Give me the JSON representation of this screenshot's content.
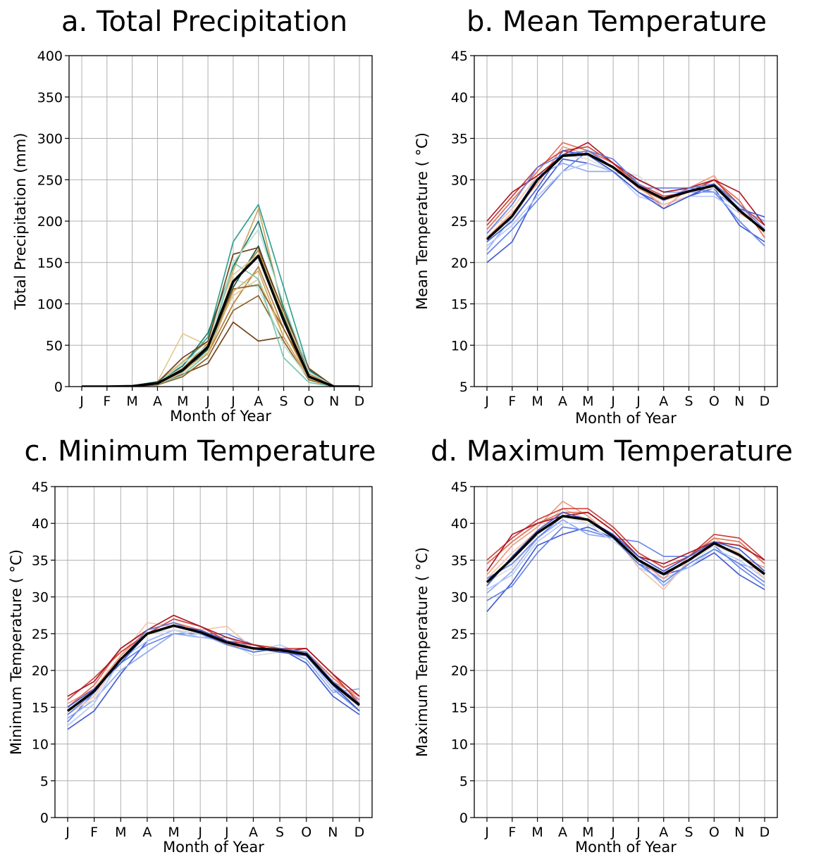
{
  "chart_data": [
    {
      "type": "line",
      "title": "a. Total Precipitation",
      "xlabel": "Month of Year",
      "ylabel": "Total Precipitation (mm)",
      "categories": [
        "J",
        "F",
        "M",
        "A",
        "M",
        "J",
        "J",
        "A",
        "S",
        "O",
        "N",
        "D"
      ],
      "ylim": [
        0,
        400
      ],
      "yticks": [
        0,
        50,
        100,
        150,
        200,
        250,
        300,
        350,
        400
      ],
      "grid": true,
      "palette": [
        "#6b3a10",
        "#8c5a1e",
        "#b07d35",
        "#cfa45c",
        "#e2c98f",
        "#b8e2d6",
        "#74c3ad",
        "#2a9d8a",
        "#137565",
        "#0a4f45"
      ],
      "mean_color": "#000000",
      "mean": [
        0,
        0,
        0.5,
        4,
        20,
        48,
        127,
        158,
        80,
        12,
        0,
        0
      ],
      "series": [
        {
          "values": [
            0,
            0,
            0,
            3,
            15,
            28,
            78,
            55,
            60,
            null,
            null,
            null
          ]
        },
        {
          "values": [
            0,
            0,
            0,
            2,
            12,
            35,
            92,
            110,
            55,
            8,
            0,
            0
          ]
        },
        {
          "values": [
            0,
            0,
            0,
            4,
            22,
            40,
            100,
            145,
            70,
            10,
            0,
            0
          ]
        },
        {
          "values": [
            0,
            0,
            1,
            5,
            30,
            55,
            140,
            215,
            90,
            15,
            0,
            0
          ]
        },
        {
          "values": [
            0,
            0,
            0,
            6,
            64,
            50,
            110,
            130,
            60,
            10,
            0,
            0
          ]
        },
        {
          "values": [
            0,
            0,
            0,
            5,
            18,
            45,
            130,
            120,
            50,
            10,
            0,
            0
          ]
        },
        {
          "values": [
            0,
            0,
            0,
            3,
            14,
            40,
            150,
            130,
            35,
            5,
            0,
            0
          ]
        },
        {
          "values": [
            0,
            0,
            0,
            5,
            25,
            60,
            175,
            220,
            120,
            20,
            0,
            0
          ]
        },
        {
          "values": [
            0,
            0,
            1,
            6,
            25,
            65,
            145,
            200,
            95,
            20,
            0,
            0
          ]
        },
        {
          "values": [
            0,
            0,
            0,
            4,
            18,
            45,
            120,
            170,
            85,
            18,
            0,
            0
          ]
        },
        {
          "values": [
            0,
            0,
            1,
            5,
            35,
            55,
            160,
            168,
            90,
            22,
            0,
            0
          ]
        },
        {
          "values": [
            0,
            0,
            0,
            4,
            20,
            48,
            118,
            123,
            70,
            15,
            0,
            0
          ]
        },
        {
          "values": [
            0,
            0,
            0,
            4,
            22,
            52,
            125,
            165,
            80,
            10,
            0,
            0
          ]
        },
        {
          "values": [
            0,
            0,
            0,
            5,
            20,
            40,
            115,
            140,
            60,
            10,
            0,
            0
          ]
        },
        {
          "values": [
            0,
            0,
            0,
            3,
            17,
            42,
            135,
            160,
            88,
            14,
            0,
            0
          ]
        },
        {
          "values": [
            0,
            0,
            0,
            4,
            28,
            50,
            150,
            190,
            100,
            18,
            0,
            0
          ]
        }
      ]
    },
    {
      "type": "line",
      "title": "b. Mean Temperature",
      "xlabel": "Month of Year",
      "ylabel": "Mean Temperature ( °C)",
      "categories": [
        "J",
        "F",
        "M",
        "A",
        "M",
        "J",
        "J",
        "A",
        "S",
        "O",
        "N",
        "D"
      ],
      "ylim": [
        5,
        45
      ],
      "yticks": [
        5,
        10,
        15,
        20,
        25,
        30,
        35,
        40,
        45
      ],
      "grid": true,
      "palette": [
        "#3b56d0",
        "#5f80e8",
        "#8aa6f2",
        "#b5c6f5",
        "#dcdcdc",
        "#f2c4a8",
        "#f0977a",
        "#e06a50",
        "#c93a34",
        "#a8101f"
      ],
      "mean_color": "#000000",
      "mean": [
        22.8,
        25.6,
        30.0,
        32.9,
        33.1,
        31.5,
        29.2,
        27.7,
        28.6,
        29.3,
        26.3,
        23.8
      ],
      "series": [
        {
          "values": [
            20.0,
            22.5,
            28.5,
            32.5,
            32.0,
            31.0,
            28.5,
            27.0,
            28.0,
            29.0,
            24.5,
            22.5
          ]
        },
        {
          "values": [
            21.0,
            24.0,
            27.5,
            31.0,
            33.5,
            31.5,
            29.0,
            29.0,
            29.0,
            28.5,
            25.0,
            22.0
          ]
        },
        {
          "values": [
            21.5,
            25.5,
            30.5,
            32.0,
            31.0,
            31.0,
            30.0,
            28.5,
            28.5,
            28.5,
            26.5,
            25.0
          ]
        },
        {
          "values": [
            22.0,
            24.5,
            28.0,
            31.0,
            32.0,
            31.0,
            28.0,
            27.0,
            28.0,
            28.0,
            26.0,
            24.0
          ]
        },
        {
          "values": [
            23.0,
            25.0,
            30.0,
            33.0,
            32.5,
            31.0,
            30.5,
            28.0,
            28.5,
            29.0,
            26.5,
            24.5
          ]
        },
        {
          "values": [
            23.5,
            26.5,
            30.5,
            33.0,
            33.0,
            31.5,
            29.0,
            27.0,
            28.0,
            29.5,
            27.0,
            23.5
          ]
        },
        {
          "values": [
            23.0,
            26.0,
            29.5,
            34.0,
            33.0,
            31.5,
            29.5,
            26.5,
            29.0,
            30.5,
            26.0,
            24.0
          ]
        },
        {
          "values": [
            24.0,
            27.5,
            31.0,
            34.5,
            33.5,
            32.0,
            29.0,
            27.5,
            28.5,
            30.0,
            27.5,
            23.0
          ]
        },
        {
          "values": [
            24.5,
            28.0,
            31.5,
            33.5,
            34.0,
            32.0,
            29.5,
            28.0,
            28.5,
            30.0,
            27.0,
            24.5
          ]
        },
        {
          "values": [
            25.0,
            28.5,
            30.5,
            33.0,
            34.5,
            32.0,
            30.0,
            28.5,
            29.0,
            30.0,
            28.5,
            24.5
          ]
        },
        {
          "values": [
            22.5,
            25.0,
            29.0,
            33.5,
            33.0,
            31.0,
            28.5,
            26.5,
            28.0,
            29.5,
            26.5,
            25.5
          ]
        },
        {
          "values": [
            23.5,
            27.0,
            31.5,
            33.0,
            33.5,
            32.5,
            29.5,
            27.5,
            29.0,
            29.5,
            27.0,
            24.0
          ]
        }
      ]
    },
    {
      "type": "line",
      "title": "c. Minimum Temperature",
      "xlabel": "Month of Year",
      "ylabel": "Minimum Temperature ( °C)",
      "categories": [
        "J",
        "F",
        "M",
        "A",
        "M",
        "J",
        "J",
        "A",
        "S",
        "O",
        "N",
        "D"
      ],
      "ylim": [
        0,
        45
      ],
      "yticks": [
        0,
        5,
        10,
        15,
        20,
        25,
        30,
        35,
        40,
        45
      ],
      "grid": true,
      "palette": [
        "#3b56d0",
        "#5f80e8",
        "#8aa6f2",
        "#b5c6f5",
        "#dcdcdc",
        "#f2c4a8",
        "#f0977a",
        "#e06a50",
        "#c93a34",
        "#a8101f"
      ],
      "mean_color": "#000000",
      "mean": [
        14.5,
        17.2,
        21.5,
        25.0,
        26.1,
        25.2,
        23.8,
        23.0,
        22.8,
        22.2,
        18.2,
        15.3
      ],
      "series": [
        {
          "values": [
            12.0,
            14.5,
            19.5,
            24.0,
            25.5,
            25.0,
            24.0,
            22.5,
            23.0,
            21.0,
            16.5,
            14.0
          ]
        },
        {
          "values": [
            13.0,
            17.0,
            21.0,
            23.5,
            25.0,
            25.0,
            25.0,
            23.5,
            22.5,
            22.0,
            17.5,
            14.5
          ]
        },
        {
          "values": [
            13.5,
            16.0,
            20.0,
            22.5,
            25.0,
            24.5,
            24.5,
            23.0,
            23.0,
            21.5,
            17.0,
            17.5
          ]
        },
        {
          "values": [
            12.5,
            15.5,
            21.5,
            24.0,
            25.5,
            24.5,
            24.0,
            22.5,
            23.5,
            22.0,
            17.5,
            16.0
          ]
        },
        {
          "values": [
            14.5,
            16.0,
            22.0,
            25.0,
            25.5,
            25.0,
            24.0,
            22.0,
            22.5,
            22.5,
            18.0,
            15.0
          ]
        },
        {
          "values": [
            14.0,
            16.5,
            22.0,
            26.5,
            26.0,
            25.5,
            26.0,
            23.0,
            22.5,
            22.0,
            18.5,
            15.5
          ]
        },
        {
          "values": [
            15.5,
            17.5,
            22.0,
            25.5,
            26.5,
            25.5,
            23.5,
            23.0,
            23.0,
            22.5,
            18.5,
            16.5
          ]
        },
        {
          "values": [
            15.0,
            18.0,
            23.0,
            25.5,
            26.5,
            25.5,
            24.0,
            23.5,
            23.0,
            22.5,
            19.0,
            16.0
          ]
        },
        {
          "values": [
            16.0,
            19.0,
            22.5,
            25.0,
            27.0,
            26.0,
            24.0,
            23.5,
            23.0,
            23.0,
            19.5,
            15.5
          ]
        },
        {
          "values": [
            16.5,
            18.5,
            23.0,
            25.5,
            27.5,
            26.0,
            24.5,
            23.5,
            22.5,
            23.0,
            19.5,
            16.5
          ]
        },
        {
          "values": [
            15.0,
            17.5,
            21.0,
            25.0,
            26.0,
            25.5,
            24.0,
            23.0,
            22.5,
            22.0,
            18.0,
            14.5
          ]
        },
        {
          "values": [
            14.0,
            17.0,
            21.5,
            25.5,
            26.5,
            25.0,
            23.5,
            22.5,
            23.0,
            22.5,
            18.5,
            15.5
          ]
        }
      ]
    },
    {
      "type": "line",
      "title": "d. Maximum Temperature",
      "xlabel": "Month of Year",
      "ylabel": "Maximum Temperature ( °C)",
      "categories": [
        "J",
        "F",
        "M",
        "A",
        "M",
        "J",
        "J",
        "A",
        "S",
        "O",
        "N",
        "D"
      ],
      "ylim": [
        0,
        45
      ],
      "yticks": [
        0,
        5,
        10,
        15,
        20,
        25,
        30,
        35,
        40,
        45
      ],
      "grid": true,
      "palette": [
        "#3b56d0",
        "#5f80e8",
        "#8aa6f2",
        "#b5c6f5",
        "#dcdcdc",
        "#f2c4a8",
        "#f0977a",
        "#e06a50",
        "#c93a34",
        "#a8101f"
      ],
      "mean_color": "#000000",
      "mean": [
        32.0,
        35.2,
        38.7,
        41.0,
        40.5,
        38.2,
        35.0,
        33.1,
        35.0,
        37.3,
        35.7,
        33.1
      ],
      "series": [
        {
          "values": [
            28.0,
            32.0,
            37.0,
            38.5,
            39.5,
            38.0,
            34.5,
            33.0,
            34.0,
            36.0,
            33.0,
            31.0
          ]
        },
        {
          "values": [
            29.5,
            31.5,
            36.0,
            39.5,
            39.0,
            38.0,
            37.5,
            35.5,
            35.5,
            37.0,
            34.0,
            31.5
          ]
        },
        {
          "values": [
            30.5,
            33.5,
            38.0,
            40.5,
            38.5,
            38.0,
            35.0,
            31.5,
            34.5,
            36.5,
            34.5,
            33.5
          ]
        },
        {
          "values": [
            31.0,
            33.0,
            37.5,
            40.0,
            40.0,
            38.5,
            34.0,
            32.5,
            34.0,
            36.5,
            35.0,
            32.5
          ]
        },
        {
          "values": [
            32.0,
            34.0,
            38.5,
            41.0,
            40.0,
            37.5,
            35.5,
            33.5,
            34.5,
            37.0,
            35.5,
            33.5
          ]
        },
        {
          "values": [
            32.5,
            36.0,
            39.0,
            42.0,
            40.5,
            38.5,
            34.0,
            31.0,
            35.0,
            38.0,
            36.0,
            32.5
          ]
        },
        {
          "values": [
            33.0,
            37.0,
            39.5,
            43.0,
            41.0,
            38.0,
            35.0,
            32.5,
            35.5,
            37.5,
            35.5,
            34.0
          ]
        },
        {
          "values": [
            34.5,
            37.5,
            40.0,
            41.5,
            41.5,
            39.0,
            35.5,
            33.5,
            35.5,
            38.0,
            37.5,
            34.5
          ]
        },
        {
          "values": [
            35.0,
            38.0,
            40.5,
            42.0,
            42.0,
            39.5,
            36.0,
            34.0,
            35.5,
            38.5,
            38.0,
            35.0
          ]
        },
        {
          "values": [
            33.5,
            38.5,
            40.0,
            41.0,
            41.5,
            39.0,
            35.5,
            34.5,
            36.0,
            37.5,
            37.0,
            35.0
          ]
        },
        {
          "values": [
            31.5,
            35.5,
            39.0,
            41.5,
            40.5,
            38.5,
            35.5,
            33.5,
            35.5,
            37.5,
            36.5,
            33.5
          ]
        },
        {
          "values": [
            32.5,
            34.5,
            38.0,
            41.0,
            40.5,
            38.0,
            34.5,
            32.0,
            34.5,
            36.5,
            34.5,
            32.0
          ]
        }
      ]
    }
  ]
}
